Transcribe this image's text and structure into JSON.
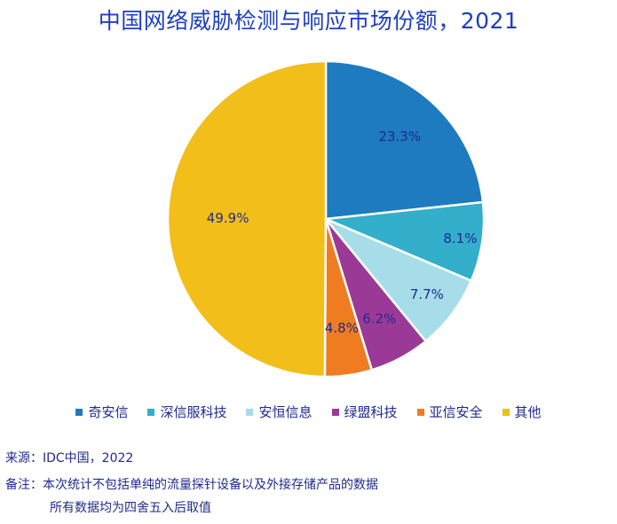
{
  "chart_data": {
    "type": "pie",
    "title": "中国网络威胁检测与响应市场份额，2021",
    "slices": [
      {
        "name": "奇安信",
        "value": 23.3,
        "label": "23.3%",
        "color": "#1e7bbf"
      },
      {
        "name": "深信服科技",
        "value": 8.1,
        "label": "8.1%",
        "color": "#33aecb"
      },
      {
        "name": "安恒信息",
        "value": 7.7,
        "label": "7.7%",
        "color": "#a6dde9"
      },
      {
        "name": "绿盟科技",
        "value": 6.2,
        "label": "6.2%",
        "color": "#9b3a96"
      },
      {
        "name": "亚信安全",
        "value": 4.8,
        "label": "4.8%",
        "color": "#f07c22"
      },
      {
        "name": "其他",
        "value": 49.9,
        "label": "49.9%",
        "color": "#f2be1a"
      }
    ],
    "legend_position": "bottom"
  },
  "footer": {
    "source": "来源：IDC中国，2022",
    "note": "备注：本次统计不包括单纯的流量探针设备以及外接存储产品的数据",
    "note2": "所有数据均为四舍五入后取值"
  }
}
